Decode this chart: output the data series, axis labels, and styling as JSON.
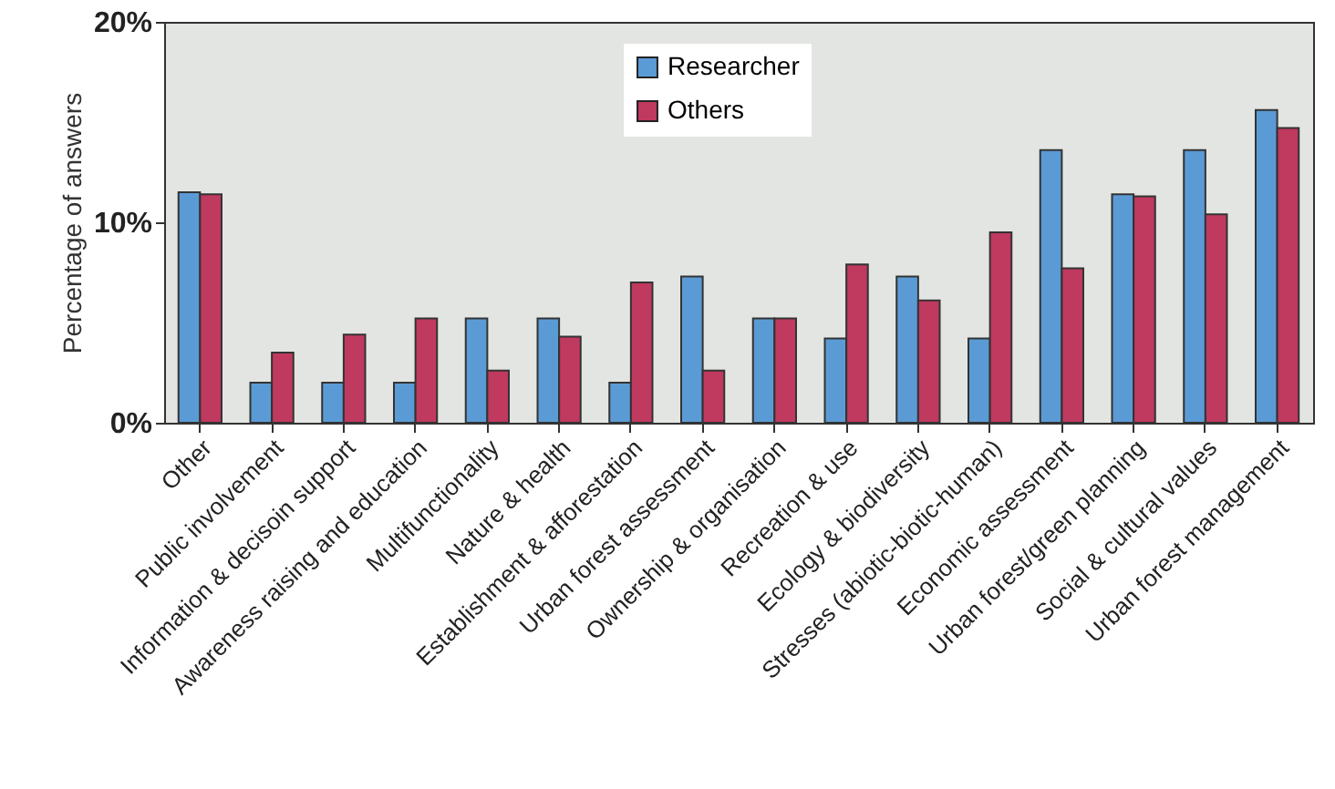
{
  "chart_data": {
    "type": "bar",
    "ylabel": "Percentage of answers",
    "categories": [
      "Other",
      "Public involvement",
      "Information & decisoin support",
      "Awareness raising and education",
      "Multifunctionality",
      "Nature & health",
      "Establishment & afforestation",
      "Urban forest assessment",
      "Ownership & organisation",
      "Recreation & use",
      "Ecology & biodiversity",
      "Stresses (abiotic-biotic-human)",
      "Economic assessment",
      "Urban forest/green planning",
      "Social & cultural values",
      "Urban forest management"
    ],
    "series": [
      {
        "name": "Researcher",
        "color": "#5b9bd5",
        "values": [
          11.5,
          2.0,
          2.0,
          2.0,
          5.2,
          5.2,
          2.0,
          7.3,
          5.2,
          4.2,
          7.3,
          4.2,
          13.6,
          11.4,
          13.6,
          15.6
        ]
      },
      {
        "name": "Others",
        "color": "#c0395f",
        "values": [
          11.4,
          3.5,
          4.4,
          5.2,
          2.6,
          4.3,
          7.0,
          2.6,
          5.2,
          7.9,
          6.1,
          9.5,
          7.7,
          11.3,
          10.4,
          14.7
        ]
      }
    ],
    "ylim": [
      0,
      20
    ],
    "yticks": [
      {
        "value": 0,
        "label": "0%"
      },
      {
        "value": 10,
        "label": "10%"
      },
      {
        "value": 20,
        "label": "20%"
      }
    ],
    "grid": false,
    "legend": "top"
  }
}
